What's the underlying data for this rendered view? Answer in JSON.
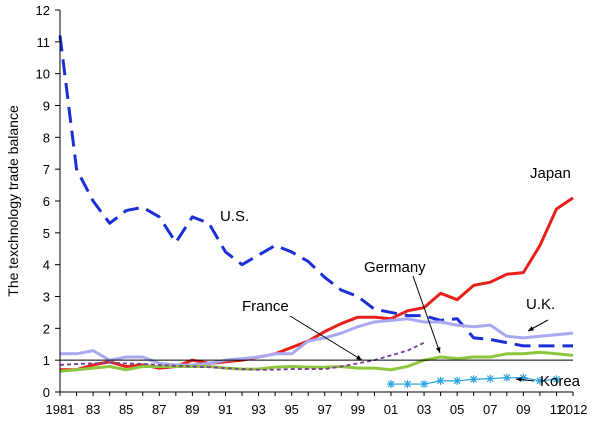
{
  "chart_data": {
    "type": "line",
    "title": "",
    "xlabel": "",
    "ylabel": "The texchnology trade balance",
    "ylim": [
      0,
      12
    ],
    "xlim": [
      1981,
      2012
    ],
    "yticks": [
      0,
      1,
      2,
      3,
      4,
      5,
      6,
      7,
      8,
      9,
      10,
      11,
      12
    ],
    "xticks": [
      {
        "x": 1981,
        "label": "1981"
      },
      {
        "x": 1983,
        "label": "83"
      },
      {
        "x": 1985,
        "label": "85"
      },
      {
        "x": 1987,
        "label": "87"
      },
      {
        "x": 1989,
        "label": "89"
      },
      {
        "x": 1991,
        "label": "91"
      },
      {
        "x": 1993,
        "label": "93"
      },
      {
        "x": 1995,
        "label": "95"
      },
      {
        "x": 1997,
        "label": "97"
      },
      {
        "x": 1999,
        "label": "99"
      },
      {
        "x": 2001,
        "label": "01"
      },
      {
        "x": 2003,
        "label": "03"
      },
      {
        "x": 2005,
        "label": "05"
      },
      {
        "x": 2007,
        "label": "07"
      },
      {
        "x": 2009,
        "label": "09"
      },
      {
        "x": 2011,
        "label": "11"
      },
      {
        "x": 2012,
        "label": "2012"
      }
    ],
    "reference_line": 1,
    "grid": false,
    "series": [
      {
        "name": "U.S.",
        "color": "#1a2fd6",
        "style": "long-dash",
        "x": [
          1981,
          1982,
          1983,
          1984,
          1985,
          1986,
          1987,
          1988,
          1989,
          1990,
          1991,
          1992,
          1993,
          1994,
          1995,
          1996,
          1997,
          1998,
          1999,
          2000,
          2001,
          2002,
          2003,
          2004,
          2005,
          2006,
          2007,
          2008,
          2009,
          2010,
          2011,
          2012
        ],
        "values": [
          11.2,
          7.0,
          6.0,
          5.3,
          5.7,
          5.8,
          5.5,
          4.7,
          5.5,
          5.3,
          4.4,
          4.0,
          4.3,
          4.6,
          4.4,
          4.1,
          3.6,
          3.2,
          3.0,
          2.6,
          2.5,
          2.4,
          2.4,
          2.25,
          2.3,
          1.7,
          1.65,
          1.55,
          1.45,
          1.45,
          1.45,
          1.45
        ]
      },
      {
        "name": "Japan",
        "color": "#e8201c",
        "style": "solid",
        "x": [
          1981,
          1982,
          1983,
          1984,
          1985,
          1986,
          1987,
          1988,
          1989,
          1990,
          1991,
          1992,
          1993,
          1994,
          1995,
          1996,
          1997,
          1998,
          1999,
          2000,
          2001,
          2002,
          2003,
          2004,
          2005,
          2006,
          2007,
          2008,
          2009,
          2010,
          2011,
          2012
        ],
        "values": [
          0.7,
          0.7,
          0.85,
          0.95,
          0.8,
          0.85,
          0.75,
          0.8,
          1.0,
          0.9,
          0.95,
          1.0,
          1.1,
          1.2,
          1.4,
          1.6,
          1.9,
          2.15,
          2.35,
          2.35,
          2.3,
          2.55,
          2.65,
          3.1,
          2.9,
          3.35,
          3.45,
          3.7,
          3.75,
          4.6,
          5.75,
          6.1
        ]
      },
      {
        "name": "U.K.",
        "color": "#a9a9f2",
        "style": "solid",
        "x": [
          1981,
          1982,
          1983,
          1984,
          1985,
          1986,
          1987,
          1988,
          1989,
          1990,
          1991,
          1992,
          1993,
          1994,
          1995,
          1996,
          1997,
          1998,
          1999,
          2000,
          2001,
          2002,
          2003,
          2004,
          2005,
          2006,
          2007,
          2008,
          2009,
          2010,
          2011,
          2012
        ],
        "values": [
          1.2,
          1.2,
          1.3,
          1.0,
          1.1,
          1.1,
          0.9,
          0.85,
          0.85,
          0.9,
          1.0,
          1.05,
          1.1,
          1.2,
          1.2,
          1.6,
          1.7,
          1.85,
          2.05,
          2.2,
          2.25,
          2.3,
          2.2,
          2.2,
          2.1,
          2.05,
          2.1,
          1.75,
          1.7,
          1.75,
          1.8,
          1.85
        ]
      },
      {
        "name": "Germany",
        "color": "#8ec63f",
        "style": "solid",
        "x": [
          1981,
          1982,
          1983,
          1984,
          1985,
          1986,
          1987,
          1988,
          1989,
          1990,
          1991,
          1992,
          1993,
          1994,
          1995,
          1996,
          1997,
          1998,
          1999,
          2000,
          2001,
          2002,
          2003,
          2004,
          2005,
          2006,
          2007,
          2008,
          2009,
          2010,
          2011,
          2012
        ],
        "values": [
          0.65,
          0.7,
          0.75,
          0.8,
          0.7,
          0.8,
          0.8,
          0.8,
          0.8,
          0.8,
          0.75,
          0.72,
          0.72,
          0.78,
          0.8,
          0.78,
          0.78,
          0.8,
          0.75,
          0.75,
          0.7,
          0.8,
          1.0,
          1.1,
          1.05,
          1.1,
          1.1,
          1.2,
          1.2,
          1.25,
          1.2,
          1.15
        ]
      },
      {
        "name": "France",
        "color": "#7d3c98",
        "style": "short-dash",
        "x": [
          1981,
          1982,
          1983,
          1984,
          1985,
          1986,
          1987,
          1988,
          1989,
          1990,
          1991,
          1992,
          1993,
          1994,
          1995,
          1996,
          1997,
          1998,
          1999,
          2000,
          2001,
          2002,
          2003
        ],
        "values": [
          0.85,
          0.88,
          0.9,
          0.92,
          0.9,
          0.88,
          0.85,
          0.82,
          0.8,
          0.78,
          0.75,
          0.72,
          0.7,
          0.7,
          0.72,
          0.72,
          0.72,
          0.8,
          0.9,
          1.0,
          1.15,
          1.3,
          1.55
        ]
      },
      {
        "name": "Korea",
        "color": "#29a3e0",
        "style": "star-markers",
        "x": [
          2001,
          2002,
          2003,
          2004,
          2005,
          2006,
          2007,
          2008,
          2009,
          2010,
          2011
        ],
        "values": [
          0.25,
          0.25,
          0.25,
          0.35,
          0.35,
          0.4,
          0.42,
          0.45,
          0.45,
          0.35,
          0.4
        ]
      }
    ],
    "annotations": [
      {
        "text": "U.S.",
        "series": "U.S."
      },
      {
        "text": "Japan",
        "series": "Japan"
      },
      {
        "text": "U.K.",
        "series": "U.K."
      },
      {
        "text": "Germany",
        "series": "Germany"
      },
      {
        "text": "France",
        "series": "France"
      },
      {
        "text": "Korea",
        "series": "Korea"
      }
    ]
  }
}
